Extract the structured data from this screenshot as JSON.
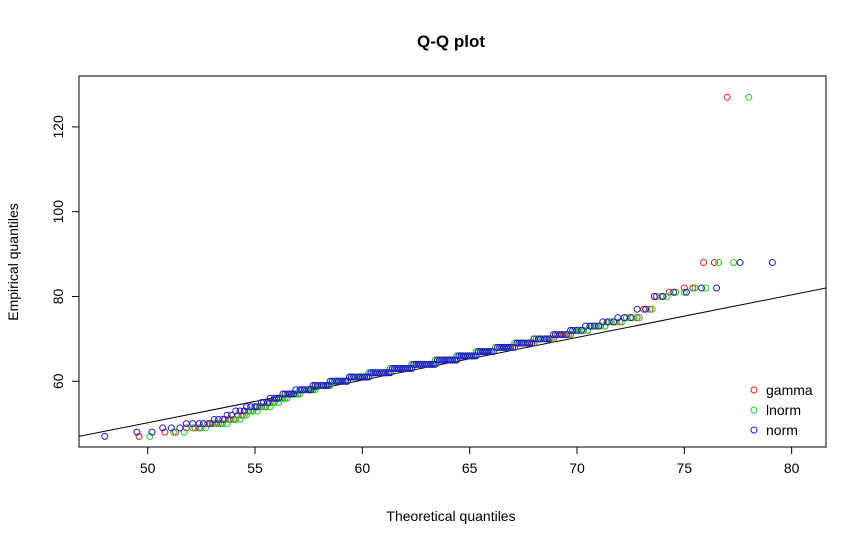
{
  "chart_data": {
    "type": "scatter",
    "title": "Q-Q plot",
    "xlabel": "Theoretical quantiles",
    "ylabel": "Empirical quantiles",
    "xlim": [
      46.8,
      81.6
    ],
    "ylim": [
      44.5,
      132
    ],
    "x_ticks": [
      50,
      55,
      60,
      65,
      70,
      75,
      80
    ],
    "y_ticks": [
      60,
      80,
      100,
      120
    ],
    "grid": false,
    "legend_position": "bottom-right",
    "reference_line": [
      [
        46.8,
        47
      ],
      [
        81.6,
        82
      ]
    ],
    "empirical": [
      47,
      48,
      48,
      49,
      49,
      49,
      50,
      50,
      50,
      50,
      50,
      51,
      51,
      51,
      52,
      52,
      53,
      53,
      53,
      54,
      54,
      54,
      54,
      55,
      55,
      55,
      56,
      56,
      56,
      56,
      57,
      57,
      57,
      57,
      57,
      58,
      58,
      58,
      58,
      58,
      58,
      59,
      59,
      59,
      59,
      59,
      59,
      59,
      60,
      60,
      60,
      60,
      60,
      60,
      60,
      60,
      61,
      61,
      61,
      61,
      61,
      61,
      61,
      61,
      61,
      62,
      62,
      62,
      62,
      62,
      62,
      62,
      62,
      62,
      62,
      63,
      63,
      63,
      63,
      63,
      63,
      63,
      63,
      63,
      63,
      64,
      64,
      64,
      64,
      64,
      64,
      64,
      64,
      64,
      64,
      64,
      65,
      65,
      65,
      65,
      65,
      65,
      65,
      65,
      65,
      65,
      66,
      66,
      66,
      66,
      66,
      66,
      66,
      66,
      66,
      67,
      67,
      67,
      67,
      67,
      67,
      67,
      67,
      68,
      68,
      68,
      68,
      68,
      68,
      68,
      68,
      69,
      69,
      69,
      69,
      69,
      69,
      69,
      70,
      70,
      70,
      70,
      70,
      70,
      71,
      71,
      71,
      71,
      71,
      72,
      72,
      72,
      72,
      73,
      73,
      73,
      73,
      74,
      74,
      74,
      75,
      75,
      75,
      77,
      77,
      80,
      80,
      81,
      81,
      82,
      82,
      88,
      88,
      127
    ],
    "series": [
      {
        "name": "gamma",
        "color": "#e0201b",
        "theoretical": [
          49.6,
          50.8,
          51.3,
          51.8,
          52.2,
          52.4,
          52.6,
          52.8,
          53.0,
          53.2,
          53.4,
          53.6,
          53.8,
          54.0,
          54.2,
          54.4,
          54.5,
          54.7,
          54.9,
          55.0,
          55.2,
          55.3,
          55.5,
          55.6,
          55.7,
          55.9,
          56.0,
          56.1,
          56.3,
          56.4,
          56.5,
          56.6,
          56.8,
          56.9,
          57.0,
          57.1,
          57.2,
          57.4,
          57.5,
          57.6,
          57.7,
          57.8,
          57.9,
          58.0,
          58.2,
          58.3,
          58.4,
          58.5,
          58.6,
          58.7,
          58.8,
          58.9,
          59.0,
          59.1,
          59.2,
          59.3,
          59.4,
          59.5,
          59.6,
          59.7,
          59.8,
          59.9,
          60.0,
          60.1,
          60.2,
          60.3,
          60.4,
          60.5,
          60.6,
          60.7,
          60.8,
          60.9,
          61.0,
          61.1,
          61.2,
          61.3,
          61.4,
          61.5,
          61.6,
          61.7,
          61.8,
          61.9,
          62.0,
          62.1,
          62.2,
          62.3,
          62.4,
          62.5,
          62.6,
          62.7,
          62.8,
          62.9,
          63.0,
          63.1,
          63.2,
          63.3,
          63.4,
          63.5,
          63.6,
          63.7,
          63.8,
          63.9,
          64.0,
          64.1,
          64.2,
          64.3,
          64.4,
          64.5,
          64.6,
          64.7,
          64.8,
          64.9,
          65.0,
          65.1,
          65.2,
          65.4,
          65.5,
          65.6,
          65.7,
          65.8,
          65.9,
          66.0,
          66.1,
          66.3,
          66.4,
          66.5,
          66.6,
          66.7,
          66.9,
          67.0,
          67.1,
          67.2,
          67.4,
          67.5,
          67.6,
          67.8,
          67.9,
          68.0,
          68.2,
          68.3,
          68.5,
          68.6,
          68.8,
          68.9,
          69.1,
          69.2,
          69.4,
          69.6,
          69.7,
          69.9,
          70.1,
          70.3,
          70.5,
          70.7,
          70.9,
          71.1,
          71.3,
          71.5,
          71.8,
          72.0,
          72.3,
          72.5,
          72.8,
          73.1,
          73.4,
          73.7,
          74.0,
          74.3,
          74.6,
          75.0,
          75.4,
          75.9,
          76.4,
          77.0,
          77.6,
          78.4,
          79.9
        ]
      },
      {
        "name": "lnorm",
        "color": "#1fcf1f",
        "theoretical": [
          50.1,
          51.2,
          51.7,
          52.1,
          52.5,
          52.7,
          52.9,
          53.1,
          53.3,
          53.5,
          53.7,
          53.9,
          54.1,
          54.3,
          54.5,
          54.6,
          54.8,
          54.9,
          55.1,
          55.2,
          55.4,
          55.5,
          55.7,
          55.8,
          55.9,
          56.1,
          56.2,
          56.3,
          56.4,
          56.5,
          56.7,
          56.8,
          56.9,
          57.0,
          57.1,
          57.3,
          57.4,
          57.5,
          57.6,
          57.7,
          57.8,
          57.9,
          58.0,
          58.1,
          58.2,
          58.3,
          58.4,
          58.5,
          58.6,
          58.7,
          58.8,
          58.9,
          59.0,
          59.1,
          59.2,
          59.3,
          59.4,
          59.5,
          59.6,
          59.7,
          59.8,
          59.9,
          60.0,
          60.1,
          60.2,
          60.3,
          60.4,
          60.5,
          60.6,
          60.7,
          60.8,
          60.9,
          61.0,
          61.1,
          61.2,
          61.3,
          61.4,
          61.5,
          61.6,
          61.7,
          61.8,
          61.9,
          62.0,
          62.1,
          62.2,
          62.3,
          62.4,
          62.5,
          62.6,
          62.7,
          62.8,
          62.9,
          63.0,
          63.1,
          63.2,
          63.3,
          63.4,
          63.5,
          63.6,
          63.7,
          63.8,
          63.9,
          64.0,
          64.1,
          64.2,
          64.3,
          64.4,
          64.5,
          64.6,
          64.7,
          64.8,
          64.9,
          65.0,
          65.1,
          65.2,
          65.3,
          65.4,
          65.5,
          65.6,
          65.7,
          65.8,
          65.9,
          66.0,
          66.2,
          66.3,
          66.4,
          66.5,
          66.6,
          66.8,
          66.9,
          67.0,
          67.1,
          67.3,
          67.4,
          67.5,
          67.7,
          67.8,
          67.9,
          68.1,
          68.2,
          68.4,
          68.5,
          68.7,
          68.8,
          69.0,
          69.2,
          69.3,
          69.5,
          69.7,
          69.9,
          70.1,
          70.3,
          70.5,
          70.7,
          70.9,
          71.1,
          71.3,
          71.6,
          71.8,
          72.1,
          72.3,
          72.6,
          72.9,
          73.2,
          73.5,
          73.9,
          74.2,
          74.6,
          75.0,
          75.5,
          76.0,
          76.6,
          77.3,
          78.0,
          78.8,
          80.5
        ]
      },
      {
        "name": "norm",
        "color": "#1a1acf",
        "theoretical": [
          48.0,
          49.5,
          50.2,
          50.7,
          51.1,
          51.5,
          51.8,
          52.1,
          52.4,
          52.6,
          52.9,
          53.1,
          53.3,
          53.5,
          53.7,
          53.9,
          54.1,
          54.3,
          54.5,
          54.6,
          54.8,
          55.0,
          55.1,
          55.3,
          55.4,
          55.6,
          55.7,
          55.9,
          56.0,
          56.1,
          56.3,
          56.4,
          56.6,
          56.7,
          56.8,
          56.9,
          57.1,
          57.2,
          57.3,
          57.5,
          57.6,
          57.7,
          57.8,
          57.9,
          58.1,
          58.2,
          58.3,
          58.4,
          58.5,
          58.6,
          58.8,
          58.9,
          59.0,
          59.1,
          59.2,
          59.3,
          59.4,
          59.5,
          59.6,
          59.8,
          59.9,
          60.0,
          60.1,
          60.2,
          60.3,
          60.4,
          60.5,
          60.6,
          60.7,
          60.8,
          60.9,
          61.0,
          61.1,
          61.2,
          61.3,
          61.4,
          61.5,
          61.6,
          61.7,
          61.8,
          61.9,
          62.0,
          62.1,
          62.2,
          62.3,
          62.4,
          62.5,
          62.6,
          62.7,
          62.8,
          62.9,
          63.0,
          63.1,
          63.2,
          63.3,
          63.4,
          63.5,
          63.6,
          63.7,
          63.8,
          63.9,
          64.0,
          64.1,
          64.2,
          64.3,
          64.4,
          64.5,
          64.6,
          64.7,
          64.8,
          64.9,
          65.0,
          65.1,
          65.2,
          65.3,
          65.4,
          65.5,
          65.6,
          65.7,
          65.8,
          65.9,
          66.0,
          66.1,
          66.3,
          66.4,
          66.5,
          66.6,
          66.7,
          66.8,
          66.9,
          67.0,
          67.2,
          67.3,
          67.4,
          67.5,
          67.7,
          67.8,
          67.9,
          68.0,
          68.2,
          68.3,
          68.5,
          68.6,
          68.7,
          68.9,
          69.0,
          69.2,
          69.3,
          69.5,
          69.7,
          69.8,
          70.0,
          70.2,
          70.4,
          70.6,
          70.8,
          71.0,
          71.2,
          71.4,
          71.7,
          71.9,
          72.2,
          72.5,
          72.8,
          73.2,
          73.6,
          74.0,
          74.5,
          75.1,
          75.8,
          76.5,
          77.6,
          79.1
        ]
      }
    ]
  }
}
